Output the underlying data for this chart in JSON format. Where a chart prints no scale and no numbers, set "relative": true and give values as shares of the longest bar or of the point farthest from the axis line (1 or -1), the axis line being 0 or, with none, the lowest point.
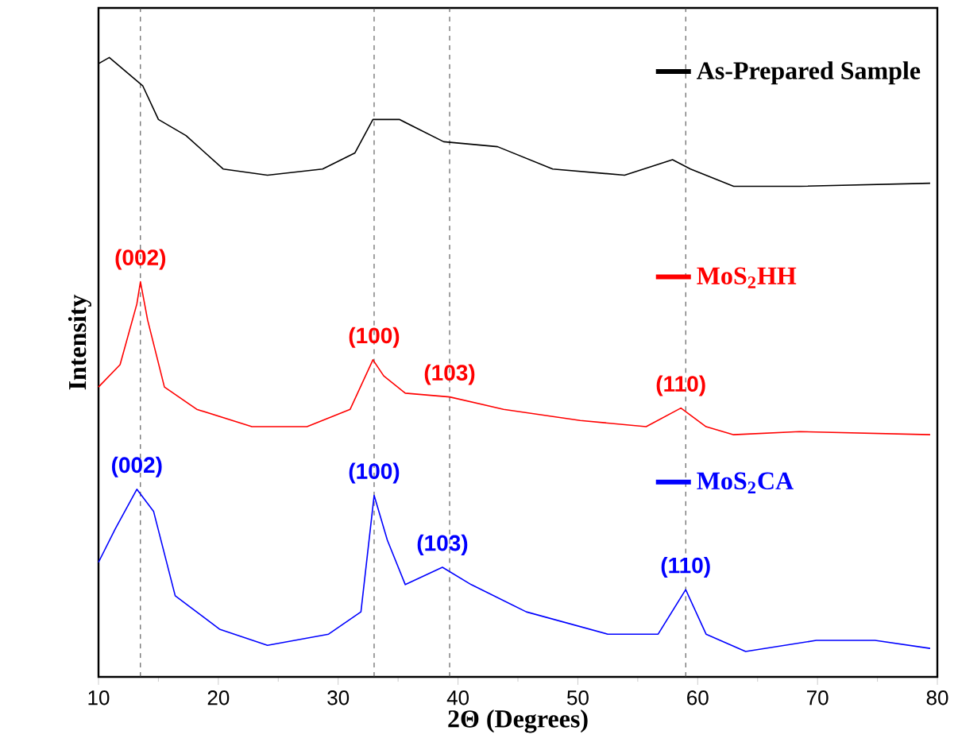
{
  "chart_data": {
    "type": "line",
    "xlabel": "2Θ (Degrees)",
    "ylabel": "Intensity",
    "relative": true,
    "legend": "right",
    "line_style": "solid",
    "xlim": [
      10,
      80
    ],
    "xticks": [
      10,
      20,
      30,
      40,
      50,
      60,
      70,
      80
    ],
    "series": [
      {
        "name": "As-Prepared Sample",
        "color": "#000000",
        "x": [
          10,
          10.9,
          13.7,
          15,
          17.3,
          20.4,
          24.1,
          28.7,
          31.4,
          32.9,
          35.1,
          38.8,
          43.3,
          47.9,
          53.9,
          57.9,
          59.4,
          63,
          68.5,
          79.4
        ],
        "values": [
          0.99,
          1.0,
          0.954,
          0.9,
          0.874,
          0.82,
          0.81,
          0.82,
          0.846,
          0.9,
          0.9,
          0.864,
          0.856,
          0.82,
          0.81,
          0.835,
          0.82,
          0.792,
          0.792,
          0.797
        ]
      },
      {
        "name": "MoS$_{2}$HH",
        "color": "#ff0000",
        "x": [
          10,
          11.8,
          13.2,
          13.5,
          14.1,
          15.5,
          18.2,
          22.8,
          27.4,
          31,
          32.9,
          33.8,
          35.6,
          39.3,
          43.8,
          50.2,
          55.7,
          58.6,
          60.7,
          63,
          68.5,
          79.4
        ],
        "values": [
          0.468,
          0.504,
          0.602,
          0.638,
          0.576,
          0.468,
          0.432,
          0.404,
          0.404,
          0.432,
          0.512,
          0.486,
          0.458,
          0.452,
          0.432,
          0.414,
          0.404,
          0.434,
          0.404,
          0.391,
          0.396,
          0.391
        ]
      },
      {
        "name": "MoS$_{2}$CA",
        "color": "#0000ff",
        "x": [
          10,
          11.4,
          13.2,
          14.6,
          16.4,
          20.1,
          24.1,
          29.2,
          31.9,
          33,
          34.1,
          35.6,
          38.7,
          41.1,
          45.7,
          52.5,
          56.7,
          59,
          60.7,
          64,
          69.9,
          74.8,
          79.4
        ],
        "values": [
          0.185,
          0.239,
          0.303,
          0.267,
          0.131,
          0.077,
          0.051,
          0.069,
          0.105,
          0.293,
          0.221,
          0.149,
          0.177,
          0.149,
          0.105,
          0.069,
          0.069,
          0.141,
          0.069,
          0.041,
          0.059,
          0.059,
          0.046
        ]
      }
    ],
    "ref_lines": [
      {
        "axis": "x",
        "value": 13.5,
        "color": "#404040",
        "line_style": "dashed"
      },
      {
        "axis": "x",
        "value": 33,
        "color": "#404040",
        "line_style": "dashed"
      },
      {
        "axis": "x",
        "value": 39.3,
        "color": "#404040",
        "line_style": "dashed"
      },
      {
        "axis": "x",
        "value": 59,
        "color": "#404040",
        "line_style": "dashed"
      }
    ],
    "annotations": [
      {
        "text": "(002)",
        "x": 13.5,
        "y": 0.638
      },
      {
        "text": "(100)",
        "x": 33,
        "y": 0.512
      },
      {
        "text": "(103)",
        "x": 39.3,
        "y": 0.452
      },
      {
        "text": "(110)",
        "x": 58.6,
        "y": 0.434
      },
      {
        "text": "(002)",
        "x": 13.2,
        "y": 0.303
      },
      {
        "text": "(100)",
        "x": 33,
        "y": 0.293
      },
      {
        "text": "(103)",
        "x": 38.7,
        "y": 0.177
      },
      {
        "text": "(110)",
        "x": 59,
        "y": 0.141
      }
    ]
  }
}
